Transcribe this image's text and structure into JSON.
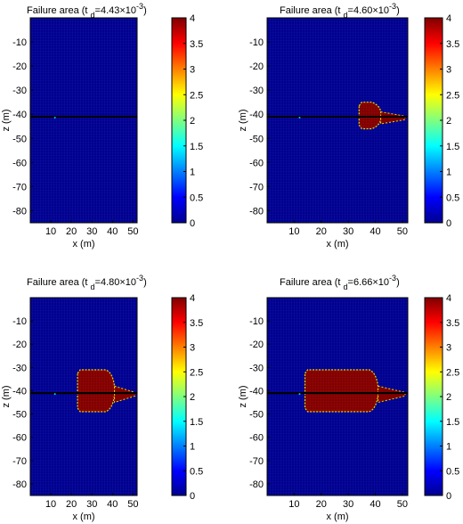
{
  "colorbar": {
    "ticks": [
      "0",
      "0.5",
      "1",
      "1.5",
      "2",
      "2.5",
      "3",
      "3.5",
      "4"
    ],
    "range": [
      0,
      4
    ],
    "colormap": "jet"
  },
  "colors": {
    "background_cell": "#00008f",
    "failure_cell": "#800000",
    "grid_line": "#1a1aa8",
    "layer_line": "#000000"
  },
  "chart_data": [
    {
      "type": "heatmap",
      "title_prefix": "Failure area (t",
      "title_sub": "d",
      "title_value": "=4.43×10",
      "title_exp": "-3",
      "title_suffix": ")",
      "xlabel": "x (m)",
      "ylabel": "z (m)",
      "xlim": [
        0,
        52
      ],
      "ylim": [
        -85,
        0
      ],
      "xticks": [
        "10",
        "20",
        "30",
        "40",
        "50"
      ],
      "yticks": [
        "-10",
        "-20",
        "-30",
        "-40",
        "-50",
        "-60",
        "-70",
        "-80"
      ],
      "layer_interface_z": -41,
      "failure_zone": null,
      "tail_zone": null
    },
    {
      "type": "heatmap",
      "title_prefix": "Failure area (t",
      "title_sub": "d",
      "title_value": "=4.60×10",
      "title_exp": "-3",
      "title_suffix": ")",
      "xlabel": "x (m)",
      "ylabel": "z (m)",
      "xlim": [
        0,
        52
      ],
      "ylim": [
        -85,
        0
      ],
      "xticks": [
        "10",
        "20",
        "30",
        "40",
        "50"
      ],
      "yticks": [
        "-10",
        "-20",
        "-30",
        "-40",
        "-50",
        "-60",
        "-70",
        "-80"
      ],
      "layer_interface_z": -41,
      "failure_zone": {
        "x_min": 34,
        "x_max": 42,
        "z_top": -35,
        "z_bottom": -46
      },
      "tail_zone": {
        "x_min": 42,
        "x_max": 51,
        "z_top": -39,
        "z_bottom": -44
      }
    },
    {
      "type": "heatmap",
      "title_prefix": "Failure area (t",
      "title_sub": "d",
      "title_value": "=4.80×10",
      "title_exp": "-3",
      "title_suffix": ")",
      "xlabel": "x (m)",
      "ylabel": "z (m)",
      "xlim": [
        0,
        52
      ],
      "ylim": [
        -85,
        0
      ],
      "xticks": [
        "10",
        "20",
        "30",
        "40",
        "50"
      ],
      "yticks": [
        "-10",
        "-20",
        "-30",
        "-40",
        "-50",
        "-60",
        "-70",
        "-80"
      ],
      "layer_interface_z": -41,
      "failure_zone": {
        "x_min": 23,
        "x_max": 41,
        "z_top": -31,
        "z_bottom": -49
      },
      "tail_zone": {
        "x_min": 41,
        "x_max": 51,
        "z_top": -38,
        "z_bottom": -45
      }
    },
    {
      "type": "heatmap",
      "title_prefix": "Failure area (t",
      "title_sub": "d",
      "title_value": "=6.66×10",
      "title_exp": "-3",
      "title_suffix": ")",
      "xlabel": "x (m)",
      "ylabel": "z (m)",
      "xlim": [
        0,
        52
      ],
      "ylim": [
        -85,
        0
      ],
      "xticks": [
        "10",
        "20",
        "30",
        "40",
        "50"
      ],
      "yticks": [
        "-10",
        "-20",
        "-30",
        "-40",
        "-50",
        "-60",
        "-70",
        "-80"
      ],
      "layer_interface_z": -41,
      "failure_zone": {
        "x_min": 14,
        "x_max": 41,
        "z_top": -31,
        "z_bottom": -49
      },
      "tail_zone": {
        "x_min": 41,
        "x_max": 51,
        "z_top": -38,
        "z_bottom": -45
      }
    }
  ]
}
